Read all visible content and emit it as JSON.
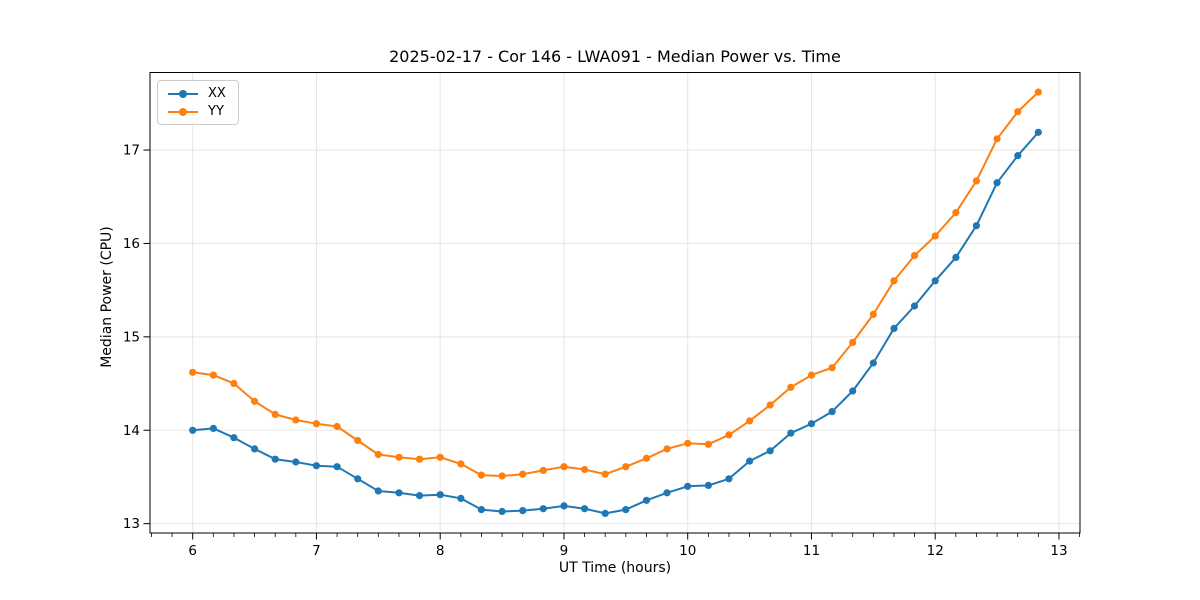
{
  "title": "2025-02-17 - Cor 146 - LWA091 - Median Power vs. Time",
  "chart_data": {
    "type": "line",
    "title": "2025-02-17 - Cor 146 - LWA091 - Median Power vs. Time",
    "xlabel": "UT Time (hours)",
    "ylabel": "Median Power (CPU)",
    "xlim": [
      5.655,
      13.17
    ],
    "ylim": [
      12.9,
      17.83
    ],
    "x_ticks": [
      6,
      7,
      8,
      9,
      10,
      11,
      12,
      13
    ],
    "y_ticks": [
      13,
      14,
      15,
      16,
      17
    ],
    "x_minor_tick_step": 0.1667,
    "grid": true,
    "grid_color": "#e5e5e5",
    "legend_position": "upper-left",
    "x": [
      6.0,
      6.167,
      6.333,
      6.5,
      6.667,
      6.833,
      7.0,
      7.167,
      7.333,
      7.5,
      7.667,
      7.833,
      8.0,
      8.167,
      8.333,
      8.5,
      8.667,
      8.833,
      9.0,
      9.167,
      9.333,
      9.5,
      9.667,
      9.833,
      10.0,
      10.167,
      10.333,
      10.5,
      10.667,
      10.833,
      11.0,
      11.167,
      11.333,
      11.5,
      11.667,
      11.833,
      12.0,
      12.167,
      12.333,
      12.5,
      12.667,
      12.833
    ],
    "series": [
      {
        "name": "XX",
        "color": "#1f77b4",
        "values": [
          14.0,
          14.02,
          13.92,
          13.8,
          13.69,
          13.66,
          13.62,
          13.61,
          13.48,
          13.35,
          13.33,
          13.3,
          13.31,
          13.27,
          13.15,
          13.13,
          13.14,
          13.16,
          13.19,
          13.16,
          13.11,
          13.15,
          13.25,
          13.33,
          13.4,
          13.41,
          13.48,
          13.67,
          13.78,
          13.97,
          14.07,
          14.2,
          14.42,
          14.72,
          15.09,
          15.33,
          15.6,
          15.85,
          16.19,
          16.65,
          16.94,
          17.19
        ]
      },
      {
        "name": "YY",
        "color": "#ff7f0e",
        "values": [
          14.62,
          14.59,
          14.5,
          14.31,
          14.17,
          14.11,
          14.07,
          14.04,
          13.89,
          13.74,
          13.71,
          13.69,
          13.71,
          13.64,
          13.52,
          13.51,
          13.53,
          13.57,
          13.61,
          13.58,
          13.53,
          13.61,
          13.7,
          13.8,
          13.86,
          13.85,
          13.95,
          14.1,
          14.27,
          14.46,
          14.59,
          14.67,
          14.94,
          15.24,
          15.6,
          15.87,
          16.08,
          16.33,
          16.67,
          17.12,
          17.41,
          17.62
        ]
      }
    ]
  }
}
